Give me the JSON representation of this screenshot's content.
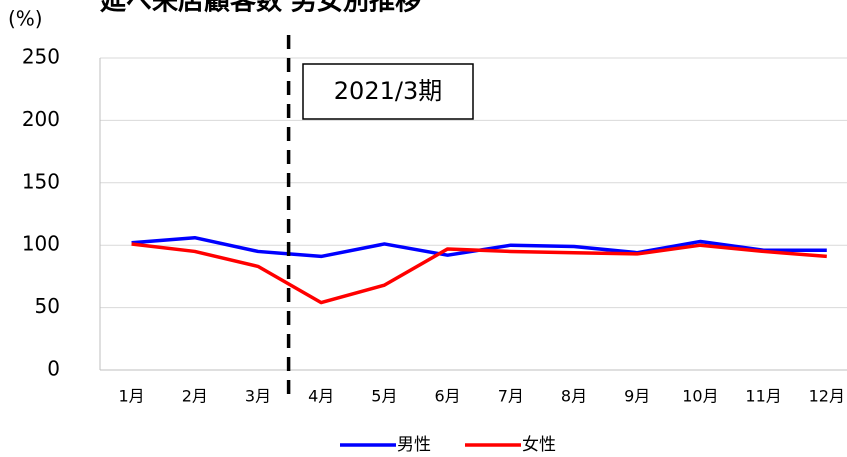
{
  "chart_data": {
    "type": "line",
    "title": "延べ来店顧客数 男女別推移",
    "y_label": "(%)",
    "categories": [
      "1月",
      "2月",
      "3月",
      "4月",
      "5月",
      "6月",
      "7月",
      "8月",
      "9月",
      "10月",
      "11月",
      "12月"
    ],
    "series": [
      {
        "name": "男性",
        "color": "#0000ff",
        "values": [
          102,
          106,
          95,
          91,
          101,
          92,
          100,
          99,
          94,
          103,
          96,
          96
        ]
      },
      {
        "name": "女性",
        "color": "#ff0000",
        "values": [
          101,
          95,
          83,
          54,
          68,
          97,
          95,
          94,
          93,
          100,
          95,
          91
        ]
      }
    ],
    "ylim": [
      0,
      250
    ],
    "yticks": [
      0,
      50,
      100,
      150,
      200,
      250
    ],
    "grid": true,
    "annotations": [
      {
        "text": "2021/3期"
      }
    ],
    "legend": "bottom"
  }
}
